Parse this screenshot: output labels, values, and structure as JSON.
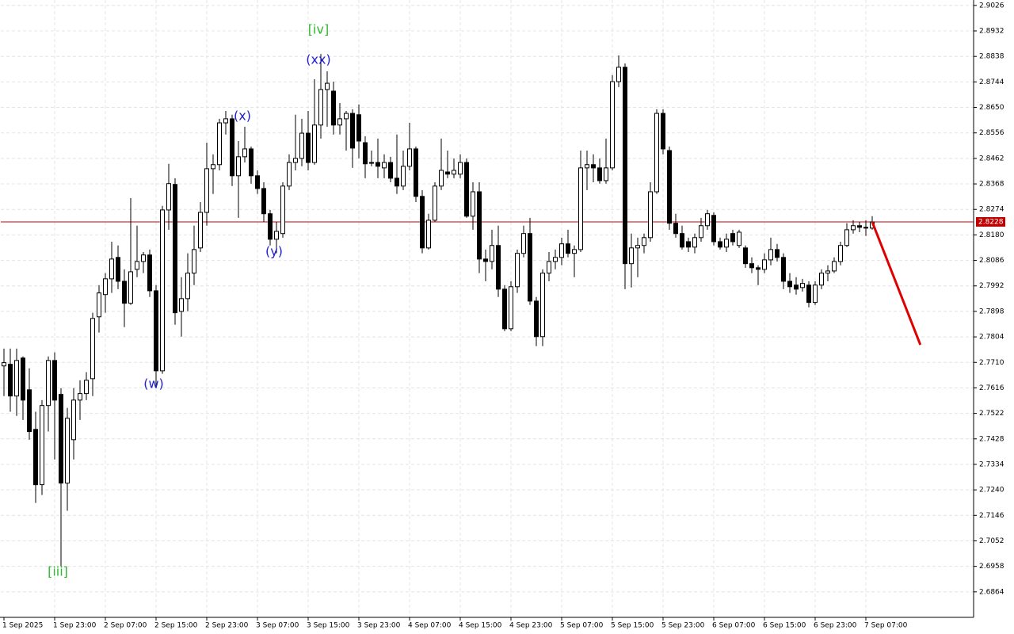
{
  "chart_data": {
    "type": "candlestick",
    "categories": [
      "1 Sep 2025",
      null,
      null,
      null,
      null,
      null,
      null,
      null,
      "1 Sep 23:00",
      null,
      null,
      null,
      null,
      null,
      null,
      null,
      "2 Sep 07:00",
      null,
      null,
      null,
      null,
      null,
      null,
      null,
      "2 Sep 15:00",
      null,
      null,
      null,
      null,
      null,
      null,
      null,
      "2 Sep 23:00",
      null,
      null,
      null,
      null,
      null,
      null,
      null,
      "3 Sep 07:00",
      null,
      null,
      null,
      null,
      null,
      null,
      null,
      "3 Sep 15:00",
      null,
      null,
      null,
      null,
      null,
      null,
      null,
      "3 Sep 23:00",
      null,
      null,
      null,
      null,
      null,
      null,
      null,
      "4 Sep 07:00",
      null,
      null,
      null,
      null,
      null,
      null,
      null,
      "4 Sep 15:00",
      null,
      null,
      null,
      null,
      null,
      null,
      null,
      "4 Sep 23:00",
      null,
      null,
      null,
      null,
      null,
      null,
      null,
      "5 Sep 07:00",
      null,
      null,
      null,
      null,
      null,
      null,
      null,
      "5 Sep 15:00",
      null,
      null,
      null,
      null,
      null,
      null,
      null,
      "5 Sep 23:00",
      null,
      null,
      null,
      null,
      null,
      null,
      null,
      "6 Sep 07:00",
      null,
      null,
      null,
      null,
      null,
      null,
      null,
      "6 Sep 15:00",
      null,
      null,
      null,
      null,
      null,
      null,
      null,
      "6 Sep 23:00",
      null,
      null,
      null,
      null,
      null,
      null,
      null,
      "7 Sep 07:00",
      null
    ],
    "open": [
      2.7697,
      2.7703,
      2.7586,
      2.7726,
      2.7609,
      2.7463,
      2.7259,
      2.7551,
      2.7717,
      2.7592,
      2.7265,
      2.7425,
      2.7571,
      2.7595,
      2.765,
      2.7878,
      2.796,
      2.8018,
      2.8097,
      2.8009,
      2.7928,
      2.8053,
      2.8082,
      2.8106,
      2.7974,
      2.7679,
      2.8272,
      2.8366,
      2.7898,
      2.7945,
      2.8039,
      2.8132,
      2.8263,
      2.8424,
      2.8439,
      2.8593,
      2.8608,
      2.8398,
      2.8468,
      2.8497,
      2.8398,
      2.8351,
      2.8258,
      2.8164,
      2.8185,
      2.836,
      2.8447,
      2.8462,
      2.8555,
      2.8447,
      2.8585,
      2.8716,
      2.871,
      2.8585,
      2.8608,
      2.8628,
      2.8623,
      2.852,
      2.8447,
      2.8447,
      2.8427,
      2.8447,
      2.8389,
      2.836,
      2.8433,
      2.8497,
      2.8322,
      2.8132,
      2.8234,
      2.836,
      2.8412,
      2.8404,
      2.8404,
      2.8447,
      2.8249,
      2.8339,
      2.8091,
      2.8082,
      2.8141,
      2.798,
      2.7834,
      2.7989,
      2.8112,
      2.8185,
      2.7936,
      2.7805,
      2.8039,
      2.8082,
      2.8097,
      2.8147,
      2.8112,
      2.8126,
      2.8427,
      2.8439,
      2.8427,
      2.838,
      2.8427,
      2.8745,
      2.8798,
      2.8074,
      2.8132,
      2.8141,
      2.817,
      2.8339,
      2.8628,
      2.8491,
      2.8223,
      2.8185,
      2.8155,
      2.8135,
      2.817,
      2.8214,
      2.8252,
      2.8155,
      2.8135,
      2.8185,
      2.8141,
      2.8132,
      2.8074,
      2.8059,
      2.8053,
      2.8088,
      2.8126,
      2.8097,
      2.8009,
      2.7995,
      2.7986,
      2.7995,
      2.7931,
      2.7995,
      2.8039,
      2.8047,
      2.8082,
      2.8141,
      2.8199,
      2.8214,
      2.8208,
      2.8205
    ],
    "high": [
      2.7761,
      2.7761,
      2.7761,
      2.7732,
      2.7688,
      2.7528,
      2.7571,
      2.7732,
      2.7747,
      2.7615,
      2.7542,
      2.7615,
      2.7644,
      2.7674,
      2.7893,
      2.7995,
      2.8039,
      2.8155,
      2.8141,
      2.8053,
      2.8316,
      2.8214,
      2.8117,
      2.8126,
      2.7995,
      2.8287,
      2.8442,
      2.8389,
      2.8024,
      2.8112,
      2.8214,
      2.8301,
      2.852,
      2.8477,
      2.8608,
      2.8637,
      2.8623,
      2.8526,
      2.8579,
      2.8506,
      2.8418,
      2.8374,
      2.8272,
      2.8228,
      2.8374,
      2.8477,
      2.8623,
      2.8608,
      2.8637,
      2.8754,
      2.8847,
      2.8783,
      2.8745,
      2.8666,
      2.8637,
      2.8643,
      2.8661,
      2.8544,
      2.8491,
      2.8535,
      2.8477,
      2.8468,
      2.855,
      2.8491,
      2.8593,
      2.8506,
      2.8345,
      2.8258,
      2.8374,
      2.8535,
      2.8491,
      2.8462,
      2.8477,
      2.8462,
      2.8374,
      2.8374,
      2.8126,
      2.8199,
      2.8214,
      2.7995,
      2.8009,
      2.8126,
      2.8214,
      2.8243,
      2.7951,
      2.8053,
      2.8117,
      2.8126,
      2.817,
      2.8199,
      2.8141,
      2.8491,
      2.8491,
      2.8477,
      2.8462,
      2.8535,
      2.8769,
      2.8842,
      2.8812,
      2.8185,
      2.817,
      2.8185,
      2.8374,
      2.8643,
      2.8643,
      2.8506,
      2.8258,
      2.8214,
      2.817,
      2.8185,
      2.8243,
      2.8272,
      2.8263,
      2.817,
      2.8185,
      2.8199,
      2.8199,
      2.8141,
      2.8097,
      2.8068,
      2.8112,
      2.817,
      2.8147,
      2.8112,
      2.8039,
      2.8024,
      2.8018,
      2.8009,
      2.8009,
      2.8053,
      2.8068,
      2.8097,
      2.8155,
      2.8223,
      2.8234,
      2.8228,
      2.8234,
      2.8249
    ],
    "low": [
      2.7586,
      2.7528,
      2.7513,
      2.7498,
      2.7425,
      2.7192,
      2.7221,
      2.7455,
      2.7352,
      2.6958,
      2.7163,
      2.7352,
      2.7498,
      2.7571,
      2.7586,
      2.782,
      2.7893,
      2.7966,
      2.798,
      2.784,
      2.7922,
      2.8024,
      2.8039,
      2.7951,
      2.7615,
      2.7668,
      2.8199,
      2.7849,
      2.7805,
      2.7898,
      2.7995,
      2.8117,
      2.8214,
      2.8331,
      2.8418,
      2.855,
      2.836,
      2.8243,
      2.8447,
      2.8369,
      2.8331,
      2.8228,
      2.8141,
      2.8112,
      2.817,
      2.8345,
      2.8418,
      2.8433,
      2.8418,
      2.8439,
      2.8535,
      2.8579,
      2.855,
      2.855,
      2.8491,
      2.8427,
      2.8462,
      2.8389,
      2.8433,
      2.8389,
      2.8389,
      2.8374,
      2.8331,
      2.8345,
      2.8418,
      2.8301,
      2.8112,
      2.8126,
      2.8228,
      2.8345,
      2.8389,
      2.8389,
      2.8389,
      2.8243,
      2.8199,
      2.8039,
      2.8009,
      2.8053,
      2.7951,
      2.7825,
      2.7825,
      2.7966,
      2.8097,
      2.7922,
      2.777,
      2.777,
      2.8009,
      2.8053,
      2.8068,
      2.8097,
      2.8024,
      2.8117,
      2.8345,
      2.8374,
      2.8369,
      2.8369,
      2.8418,
      2.8725,
      2.798,
      2.7986,
      2.8024,
      2.8112,
      2.8155,
      2.8331,
      2.8477,
      2.8199,
      2.817,
      2.8126,
      2.8117,
      2.8112,
      2.8155,
      2.8199,
      2.8141,
      2.8126,
      2.8117,
      2.8141,
      2.8132,
      2.8059,
      2.8039,
      2.7995,
      2.8039,
      2.8068,
      2.8082,
      2.798,
      2.7966,
      2.796,
      2.7971,
      2.7913,
      2.7922,
      2.798,
      2.8009,
      2.8039,
      2.8068,
      2.8135,
      2.8185,
      2.819,
      2.8176,
      2.8199
    ],
    "close": [
      2.7709,
      2.7586,
      2.7717,
      2.7571,
      2.7455,
      2.7259,
      2.7551,
      2.7717,
      2.7571,
      2.7265,
      2.7504,
      2.7571,
      2.7595,
      2.7644,
      2.7872,
      2.7966,
      2.8018,
      2.8091,
      2.8009,
      2.7928,
      2.8044,
      2.8082,
      2.8106,
      2.7974,
      2.7679,
      2.8272,
      2.8369,
      2.7893,
      2.7945,
      2.8039,
      2.8126,
      2.8263,
      2.8424,
      2.8439,
      2.8593,
      2.8608,
      2.8398,
      2.8468,
      2.8497,
      2.8398,
      2.8351,
      2.8258,
      2.8164,
      2.8193,
      2.836,
      2.8447,
      2.8462,
      2.8555,
      2.8447,
      2.8585,
      2.8716,
      2.8739,
      2.8585,
      2.8608,
      2.8628,
      2.85,
      2.8526,
      2.8442,
      2.8444,
      2.8433,
      2.8447,
      2.8389,
      2.836,
      2.8433,
      2.8497,
      2.8322,
      2.8132,
      2.8234,
      2.836,
      2.8418,
      2.8404,
      2.8418,
      2.8447,
      2.8249,
      2.8339,
      2.8091,
      2.8082,
      2.8141,
      2.798,
      2.7834,
      2.7989,
      2.8112,
      2.8185,
      2.7936,
      2.7805,
      2.8039,
      2.8082,
      2.8097,
      2.8147,
      2.8112,
      2.8126,
      2.8427,
      2.8439,
      2.8427,
      2.838,
      2.8427,
      2.8745,
      2.8798,
      2.8074,
      2.8132,
      2.8141,
      2.817,
      2.8339,
      2.8628,
      2.8497,
      2.8223,
      2.8185,
      2.8135,
      2.8135,
      2.817,
      2.8214,
      2.8258,
      2.8155,
      2.8135,
      2.8164,
      2.8155,
      2.819,
      2.8074,
      2.8059,
      2.8053,
      2.8088,
      2.8126,
      2.8097,
      2.8009,
      2.7989,
      2.798,
      2.8001,
      2.7931,
      2.7995,
      2.8039,
      2.8047,
      2.8082,
      2.8141,
      2.8199,
      2.8214,
      2.8208,
      2.8205,
      2.8228
    ],
    "up_color": "#ffffff",
    "down_color": "#000000",
    "ylim": [
      2.677,
      2.9046
    ],
    "yticks": [
      2.9026,
      2.8932,
      2.8838,
      2.8744,
      {
        "value": 2.865,
        "label": "2.8650"
      },
      2.8556,
      2.8462,
      2.8368,
      2.8274,
      {
        "value": 2.818,
        "label": "2.8180"
      },
      2.8086,
      2.7992,
      2.7898,
      2.7804,
      {
        "value": 2.771,
        "label": "2.7710"
      },
      2.7616,
      2.7522,
      2.7428,
      2.7334,
      {
        "value": 2.724,
        "label": "2.7240"
      },
      2.7146,
      2.7052,
      2.6958,
      2.6864
    ],
    "grid": true,
    "current_price": {
      "value": 2.8228,
      "color": "#c00000"
    },
    "forecast": {
      "color": "#e00000",
      "x": [
        137,
        144.6
      ],
      "values": [
        2.8228,
        2.7775
      ]
    },
    "annotations": [
      {
        "text": "[iii]",
        "color": "#30b830"
      },
      {
        "text": "(w)",
        "color": "#2020d0"
      },
      {
        "text": "(x)",
        "color": "#2020d0"
      },
      {
        "text": "(y)",
        "color": "#2020d0"
      },
      {
        "text": "[iv]",
        "color": "#30b830"
      },
      {
        "text": "(xx)",
        "color": "#2020d0"
      }
    ]
  }
}
